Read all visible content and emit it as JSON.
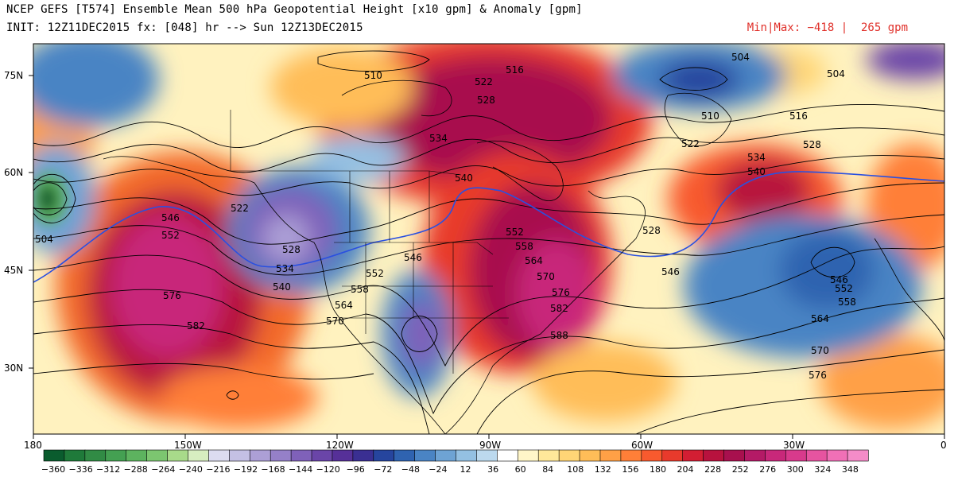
{
  "header": {
    "title": "NCEP GEFS [T574] Ensemble Mean 500 hPa Geopotential Height [x10 gpm] & Anomaly [gpm]",
    "init": "INIT: 12Z11DEC2015 fx: [048] hr --> Sun 12Z13DEC2015",
    "minmax": "Min|Max: −418 |  265 gpm"
  },
  "axes": {
    "lat_labels": [
      "75N",
      "60N",
      "45N",
      "30N"
    ],
    "lon_labels": [
      "180",
      "150W",
      "120W",
      "90W",
      "60W",
      "30W",
      "0"
    ]
  },
  "colorbar": {
    "ticks": [
      "−360",
      "−336",
      "−312",
      "−288",
      "−264",
      "−240",
      "−216",
      "−192",
      "−168",
      "−144",
      "−120",
      "−96",
      "−72",
      "−48",
      "−24",
      "12",
      "36",
      "60",
      "84",
      "108",
      "132",
      "156",
      "180",
      "204",
      "228",
      "252",
      "276",
      "300",
      "324",
      "348"
    ],
    "colors": [
      "#0a5c2e",
      "#1f7a3a",
      "#318b45",
      "#44a052",
      "#5db35f",
      "#7cc670",
      "#a8da8a",
      "#d7eec0",
      "#dcdcf0",
      "#c4c0e4",
      "#ac9fd6",
      "#9580c8",
      "#7f61b9",
      "#6a45a8",
      "#563098",
      "#3a2f92",
      "#26459e",
      "#2f63b0",
      "#4a84c4",
      "#6ea3d4",
      "#94c0e2",
      "#bcd9ee",
      "#ffffff",
      "#fff6c8",
      "#ffe89a",
      "#ffd576",
      "#ffbd58",
      "#ffa046",
      "#ff7f38",
      "#f85a2e",
      "#e83a2c",
      "#d21e33",
      "#b8123e",
      "#a8104e",
      "#b41a66",
      "#c8287a",
      "#d83a8c",
      "#e654a0",
      "#f070b6",
      "#f48cc8"
    ],
    "value_labels_count": 30
  },
  "contour_labels": [
    {
      "text": "504"
    },
    {
      "text": "510"
    },
    {
      "text": "516"
    },
    {
      "text": "522"
    },
    {
      "text": "528"
    },
    {
      "text": "534"
    },
    {
      "text": "540"
    },
    {
      "text": "546"
    },
    {
      "text": "552"
    },
    {
      "text": "558"
    },
    {
      "text": "564"
    },
    {
      "text": "570"
    },
    {
      "text": "576"
    },
    {
      "text": "582"
    },
    {
      "text": "588"
    }
  ]
}
